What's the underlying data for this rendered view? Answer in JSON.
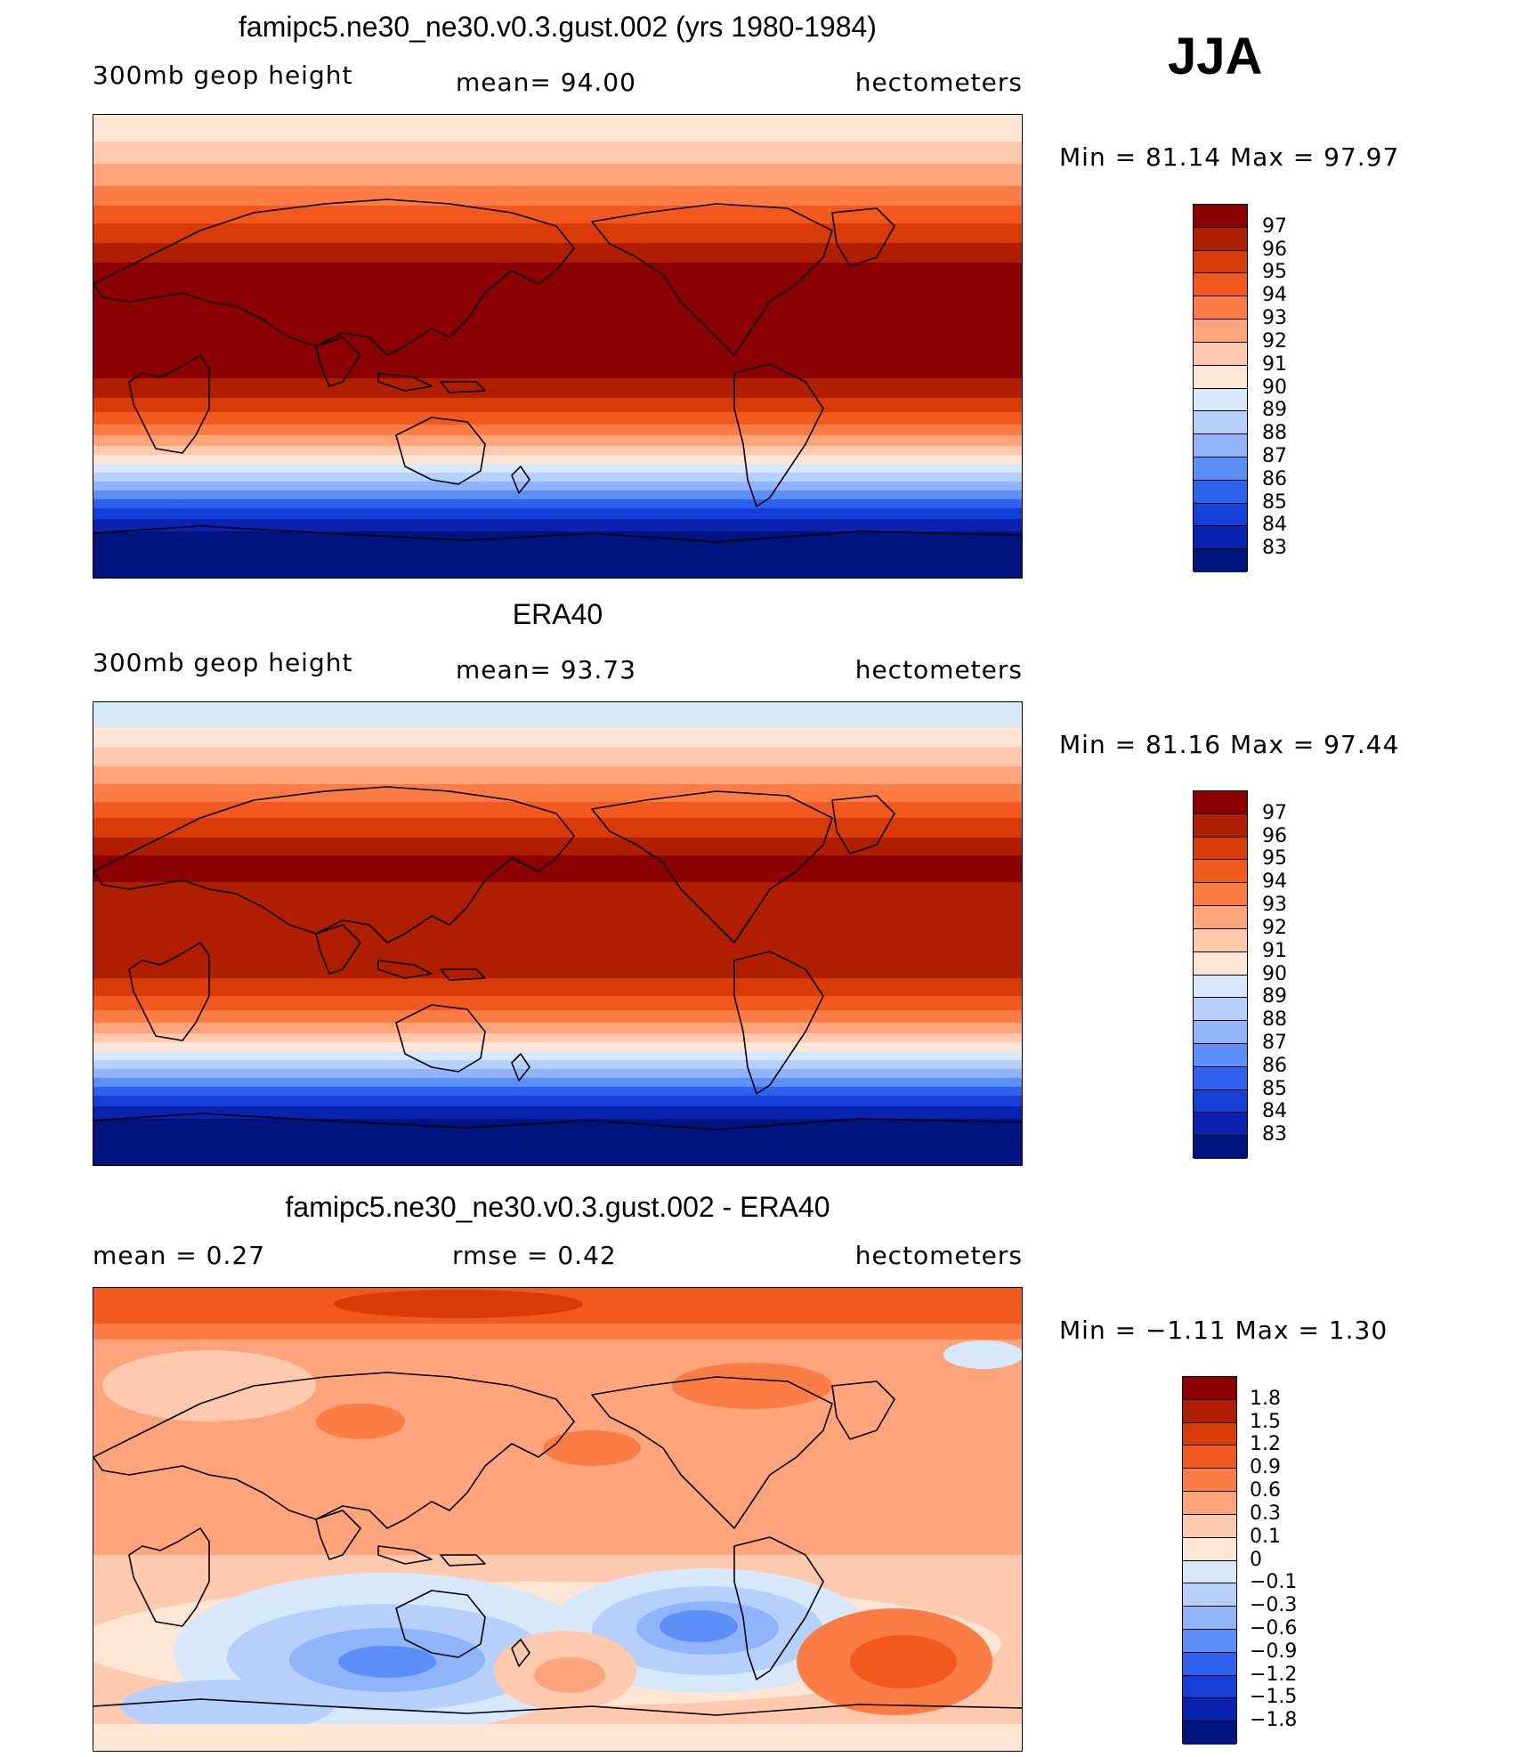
{
  "season": "JJA",
  "panels": [
    {
      "title": "famipc5.ne30_ne30.v0.3.gust.002 (yrs 1980-1984)",
      "left_label": "300mb  geop  height",
      "mid_label": "mean=   94.00",
      "units": "hectometers",
      "minmax": "Min  =    81.14  Max  =    97.97",
      "colorbar_labels": [
        "97",
        "96",
        "95",
        "94",
        "93",
        "92",
        "91",
        "90",
        "89",
        "88",
        "87",
        "86",
        "85",
        "84",
        "83"
      ],
      "colors": [
        "#8b0000",
        "#b01e00",
        "#d93b08",
        "#f2591e",
        "#fb7d45",
        "#fda47d",
        "#fec9ad",
        "#fee5d4",
        "#d6e8fa",
        "#b6d0fb",
        "#8fb4fc",
        "#5d8ff8",
        "#2e62ee",
        "#143fd9",
        "#0a22b0",
        "#00147f"
      ]
    },
    {
      "title": "ERA40",
      "left_label": "300mb  geop  height",
      "mid_label": "mean=   93.73",
      "units": "hectometers",
      "minmax": "Min  =    81.16  Max  =    97.44",
      "colorbar_labels": [
        "97",
        "96",
        "95",
        "94",
        "93",
        "92",
        "91",
        "90",
        "89",
        "88",
        "87",
        "86",
        "85",
        "84",
        "83"
      ],
      "colors": [
        "#8b0000",
        "#b01e00",
        "#d93b08",
        "#f2591e",
        "#fb7d45",
        "#fda47d",
        "#fec9ad",
        "#fee5d4",
        "#d6e8fa",
        "#b6d0fb",
        "#8fb4fc",
        "#5d8ff8",
        "#2e62ee",
        "#143fd9",
        "#0a22b0",
        "#00147f"
      ]
    },
    {
      "title": "famipc5.ne30_ne30.v0.3.gust.002 - ERA40",
      "left_label": "mean  =     0.27",
      "mid_label": "rmse  =     0.42",
      "units": "hectometers",
      "minmax": "Min  =   −1.11  Max  =      1.30",
      "colorbar_labels": [
        "1.8",
        "1.5",
        "1.2",
        "0.9",
        "0.6",
        "0.3",
        "0.1",
        "0",
        "−0.1",
        "−0.3",
        "−0.6",
        "−0.9",
        "−1.2",
        "−1.5",
        "−1.8"
      ],
      "colors": [
        "#8b0000",
        "#b01e00",
        "#d93b08",
        "#f2591e",
        "#fb7d45",
        "#fda47d",
        "#fec9ad",
        "#fee5d4",
        "#d6e8fa",
        "#b6d0fb",
        "#8fb4fc",
        "#5d8ff8",
        "#2e62ee",
        "#143fd9",
        "#0a22b0",
        "#00147f"
      ]
    }
  ]
}
